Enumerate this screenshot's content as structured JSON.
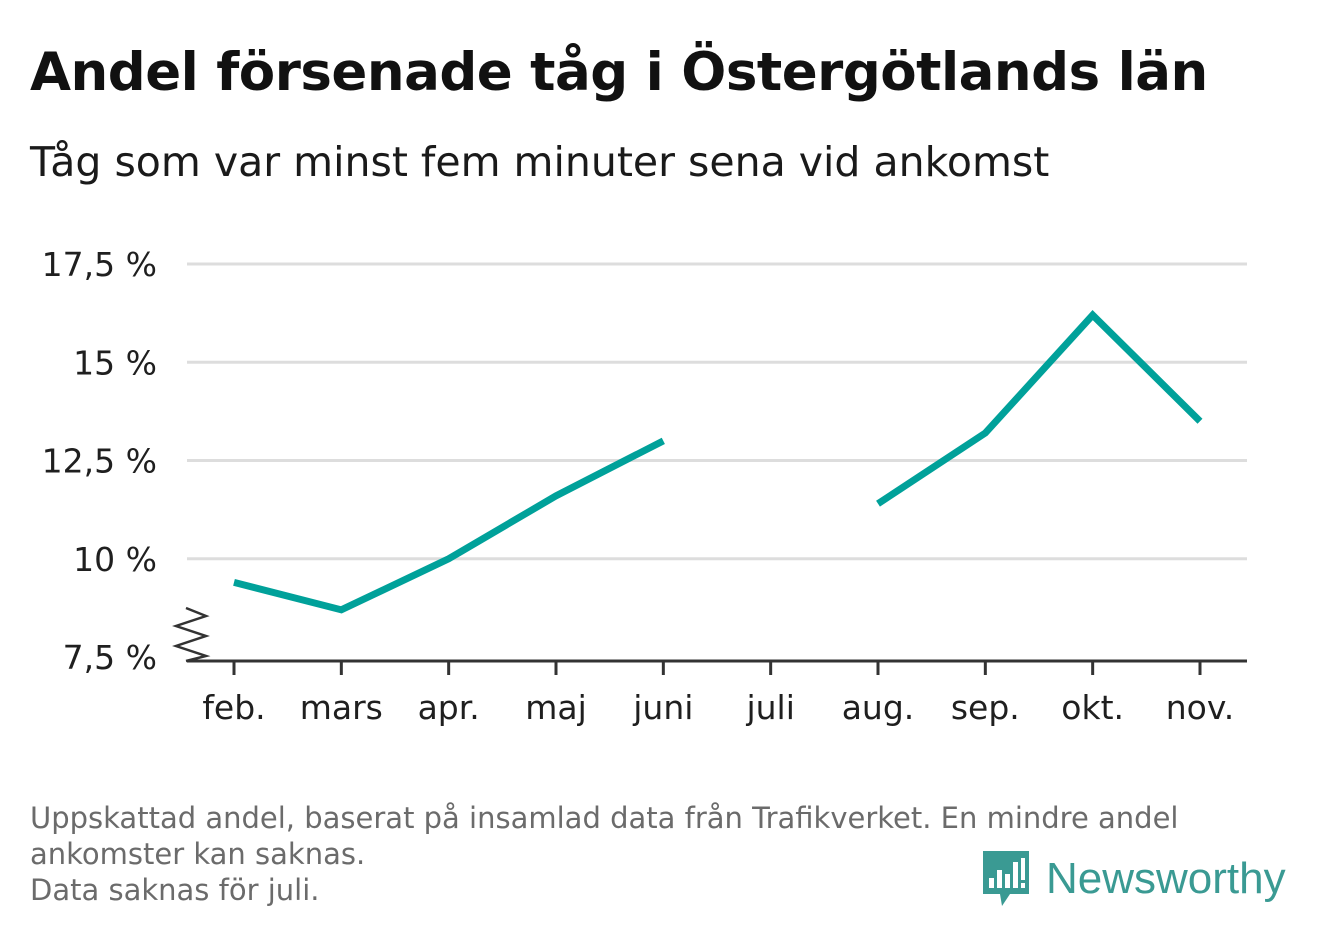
{
  "title": "Andel försenade tåg i Östergötlands län",
  "subtitle": "Tåg som var minst fem minuter sena vid ankomst",
  "footnote": {
    "line1": "Uppskattad andel, baserat på insamlad data från Trafikverket. En mindre andel",
    "line2": "ankomster kan saknas.",
    "line3": "Data saknas för juli."
  },
  "brand": {
    "name": "Newsworthy",
    "icon": "bar-chart-speech-bubble-icon"
  },
  "colors": {
    "line": "#00a19a",
    "grid": "#dddddd",
    "axis": "#333333",
    "brand": "#3a9a93"
  },
  "chart_data": {
    "type": "line",
    "categories": [
      "feb.",
      "mars",
      "apr.",
      "maj",
      "juni",
      "juli",
      "aug.",
      "sep.",
      "okt.",
      "nov."
    ],
    "series": [
      {
        "values": [
          9.4,
          8.7,
          10.0,
          11.6,
          13.0,
          null,
          11.4,
          13.2,
          16.2,
          13.5
        ]
      }
    ],
    "ylim": [
      7.5,
      17.5
    ],
    "yticks": [
      7.5,
      10,
      12.5,
      15,
      17.5
    ],
    "ytick_labels": [
      "7,5 %",
      "10 %",
      "12,5 %",
      "15 %",
      "17,5 %"
    ],
    "axis_break": true,
    "grid": true,
    "xlabel": "",
    "ylabel": ""
  }
}
